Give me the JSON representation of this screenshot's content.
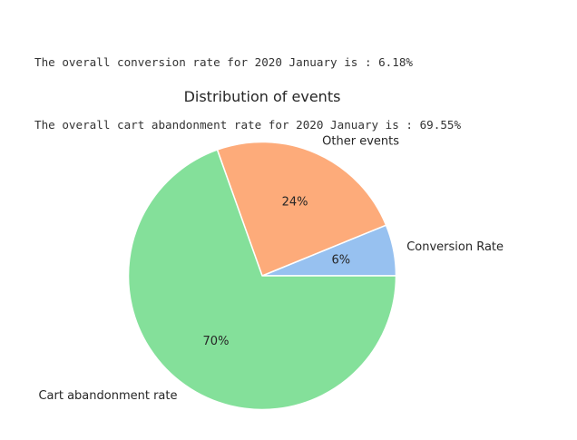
{
  "output": {
    "lines": [
      "The overall conversion rate for 2020 January is : 6.18%",
      "The overall cart abandonment rate for 2020 January is : 69.55%"
    ]
  },
  "chart_data": {
    "type": "pie",
    "title": "Distribution of events",
    "categories": [
      "Conversion Rate",
      "Other events",
      "Cart abandonment rate"
    ],
    "values": [
      6.18,
      24.27,
      69.55
    ],
    "labels": [
      "6%",
      "24%",
      "70%"
    ],
    "colors": [
      "#97c1f0",
      "#fdab7a",
      "#84e09a"
    ],
    "start_angle_deg": 0,
    "direction": "counterclockwise",
    "legend": "none"
  }
}
